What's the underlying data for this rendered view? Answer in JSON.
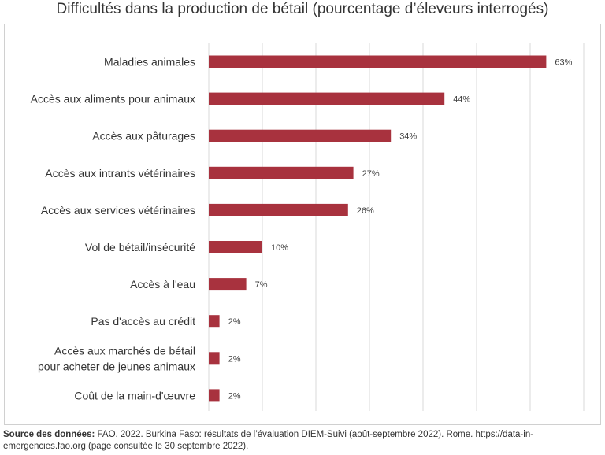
{
  "chart_data": {
    "type": "bar",
    "orientation": "horizontal",
    "title": "Difficultés dans la production de bétail (pourcentage d’éleveurs interrogés)",
    "categories": [
      "Maladies animales",
      "Accès aux aliments pour animaux",
      "Accès aux pâturages",
      "Accès aux intrants vétérinaires",
      "Accès aux services vétérinaires",
      "Vol de bétail/insécurité",
      "Accès à l'eau",
      "Pas d'accès au crédit",
      "Accès aux marchés de bétail pour acheter de jeunes animaux",
      "Coût de la main-d'œuvre"
    ],
    "category_lines": [
      [
        "Maladies animales"
      ],
      [
        "Accès aux aliments pour animaux"
      ],
      [
        "Accès aux pâturages"
      ],
      [
        "Accès aux intrants vétérinaires"
      ],
      [
        "Accès aux services vétérinaires"
      ],
      [
        "Vol de bétail/insécurité"
      ],
      [
        "Accès à l'eau"
      ],
      [
        "Pas d'accès au crédit"
      ],
      [
        "Accès aux marchés de bétail",
        "pour acheter de jeunes animaux"
      ],
      [
        "Coût de la main-d'œuvre"
      ]
    ],
    "values": [
      63,
      44,
      34,
      27,
      26,
      10,
      7,
      2,
      2,
      2
    ],
    "value_labels": [
      "63%",
      "44%",
      "34%",
      "27%",
      "26%",
      "10%",
      "7%",
      "2%",
      "2%",
      "2%"
    ],
    "xlim": [
      0,
      70
    ],
    "grid": true,
    "bar_color": "#a8323e"
  },
  "source": {
    "label": "Source des données:",
    "text": " FAO. 2022. Burkina Faso: résultats de l’évaluation DIEM-Suivi (août-septembre 2022). Rome. https://data-in-emergencies.fao.org (page consultée le 30 septembre 2022)."
  }
}
